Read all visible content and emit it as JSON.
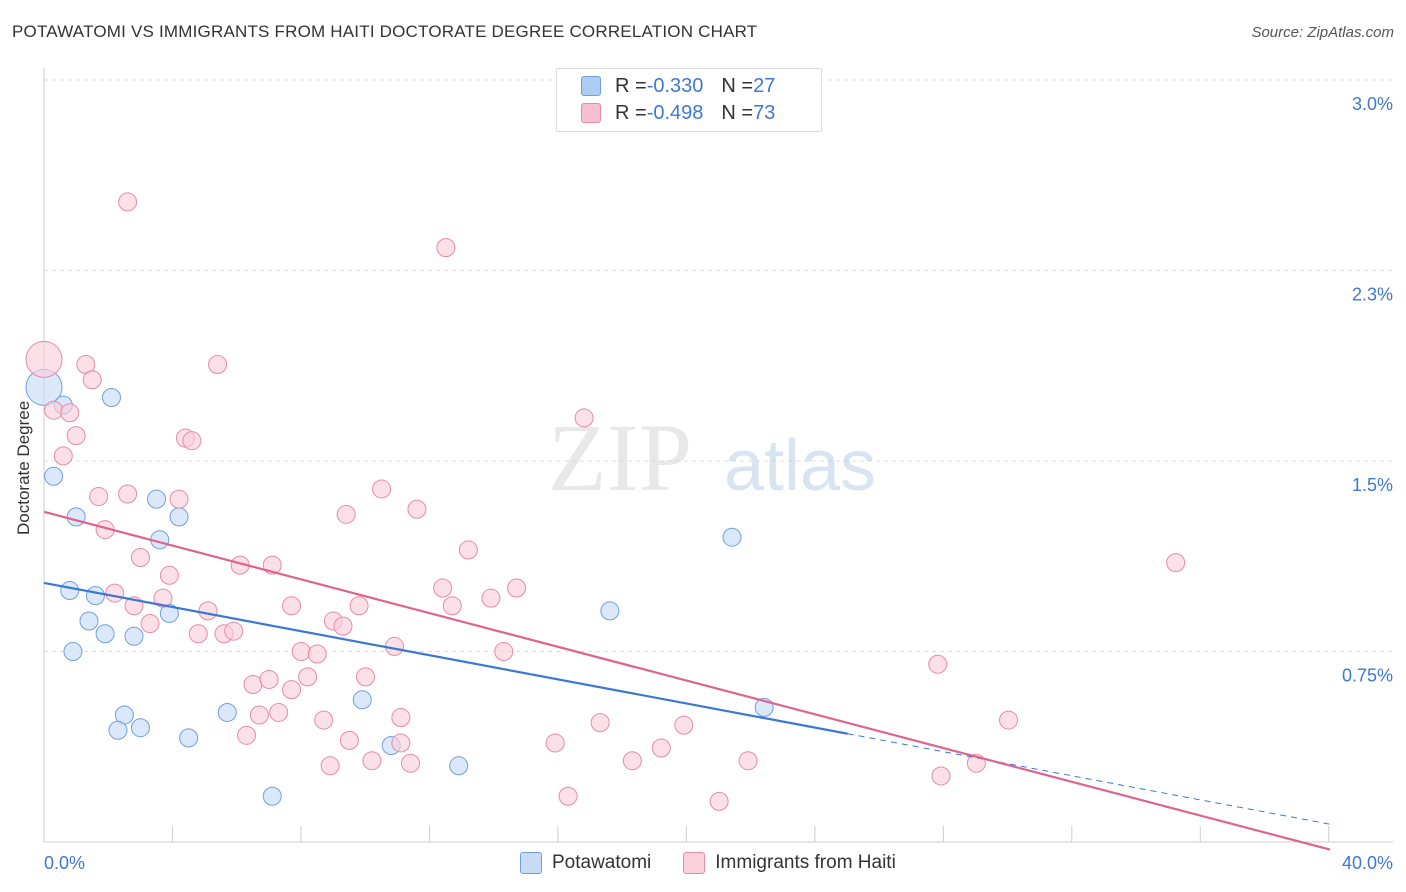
{
  "header": {
    "title": "POTAWATOMI VS IMMIGRANTS FROM HAITI DOCTORATE DEGREE CORRELATION CHART",
    "source": "Source: ZipAtlas.com"
  },
  "watermark": {
    "zip": "ZIP",
    "atlas": "atlas"
  },
  "legend": {
    "rows": [
      {
        "r_label": "R = ",
        "r_value": "-0.330",
        "n_label": "N = ",
        "n_value": "27",
        "color": "#aecbf2",
        "border": "#6f9fe0"
      },
      {
        "r_label": "R = ",
        "r_value": "-0.498",
        "n_label": "N = ",
        "n_value": "73",
        "color": "#f7c0d0",
        "border": "#e88aa6"
      }
    ]
  },
  "bottom_legend": {
    "items": [
      {
        "label": "Potawatomi",
        "color": "#c7dbf7",
        "border": "#6f9fe0"
      },
      {
        "label": "Immigrants from Haiti",
        "color": "#f9d0dc",
        "border": "#e88aa6"
      }
    ]
  },
  "chart_data": {
    "type": "scatter",
    "title": "POTAWATOMI VS IMMIGRANTS FROM HAITI DOCTORATE DEGREE CORRELATION CHART",
    "xlabel": "",
    "ylabel": "Doctorate Degree",
    "xlim": [
      0,
      40
    ],
    "ylim": [
      0,
      3.15
    ],
    "x_ticks": [
      "0.0%",
      "40.0%"
    ],
    "y_ticks": [
      {
        "value": 3.0,
        "label": "3.0%"
      },
      {
        "value": 2.25,
        "label": "2.3%"
      },
      {
        "value": 1.5,
        "label": "1.5%"
      },
      {
        "value": 0.75,
        "label": "0.75%"
      }
    ],
    "grid": "horizontal dashed",
    "series": [
      {
        "name": "Potawatomi",
        "color": "#6f9fe0",
        "fill": "#c7dbf7",
        "points": [
          [
            0.0,
            1.79,
            18
          ],
          [
            0.3,
            1.44,
            9
          ],
          [
            0.6,
            1.72,
            9
          ],
          [
            2.1,
            1.75,
            9
          ],
          [
            1.0,
            1.28,
            9
          ],
          [
            0.8,
            0.99,
            9
          ],
          [
            1.6,
            0.97,
            9
          ],
          [
            1.4,
            0.87,
            9
          ],
          [
            0.9,
            0.75,
            9
          ],
          [
            1.9,
            0.82,
            9
          ],
          [
            2.8,
            0.81,
            9
          ],
          [
            3.5,
            1.35,
            9
          ],
          [
            4.2,
            1.28,
            9
          ],
          [
            3.6,
            1.19,
            9
          ],
          [
            3.9,
            0.9,
            9
          ],
          [
            2.5,
            0.5,
            9
          ],
          [
            2.3,
            0.44,
            9
          ],
          [
            3.0,
            0.45,
            9
          ],
          [
            4.5,
            0.41,
            9
          ],
          [
            5.7,
            0.51,
            9
          ],
          [
            7.1,
            0.18,
            9
          ],
          [
            9.9,
            0.56,
            9
          ],
          [
            10.8,
            0.38,
            9
          ],
          [
            12.9,
            0.3,
            9
          ],
          [
            17.6,
            0.91,
            9
          ],
          [
            21.4,
            1.2,
            9
          ],
          [
            22.4,
            0.53,
            9
          ]
        ]
      },
      {
        "name": "Immigrants from Haiti",
        "color": "#e88aa6",
        "fill": "#f9d0dc",
        "points": [
          [
            0.0,
            1.9,
            18
          ],
          [
            0.3,
            1.7,
            9
          ],
          [
            0.8,
            1.69,
            9
          ],
          [
            1.3,
            1.88,
            9
          ],
          [
            1.5,
            1.82,
            9
          ],
          [
            1.0,
            1.6,
            9
          ],
          [
            0.6,
            1.52,
            9
          ],
          [
            1.7,
            1.36,
            9
          ],
          [
            2.6,
            2.52,
            9
          ],
          [
            2.6,
            1.37,
            9
          ],
          [
            1.9,
            1.23,
            9
          ],
          [
            2.2,
            0.98,
            9
          ],
          [
            3.0,
            1.12,
            9
          ],
          [
            4.2,
            1.35,
            9
          ],
          [
            4.4,
            1.59,
            9
          ],
          [
            4.6,
            1.58,
            9
          ],
          [
            5.4,
            1.88,
            9
          ],
          [
            3.9,
            1.05,
            9
          ],
          [
            3.7,
            0.96,
            9
          ],
          [
            2.8,
            0.93,
            9
          ],
          [
            3.3,
            0.86,
            9
          ],
          [
            4.8,
            0.82,
            9
          ],
          [
            5.6,
            0.82,
            9
          ],
          [
            5.9,
            0.83,
            9
          ],
          [
            5.1,
            0.91,
            9
          ],
          [
            6.1,
            1.09,
            9
          ],
          [
            6.5,
            0.62,
            9
          ],
          [
            6.7,
            0.5,
            9
          ],
          [
            7.0,
            0.64,
            9
          ],
          [
            7.1,
            1.09,
            9
          ],
          [
            7.7,
            0.6,
            9
          ],
          [
            7.3,
            0.51,
            9
          ],
          [
            7.7,
            0.93,
            9
          ],
          [
            8.0,
            0.75,
            9
          ],
          [
            8.2,
            0.65,
            9
          ],
          [
            8.5,
            0.74,
            9
          ],
          [
            8.7,
            0.48,
            9
          ],
          [
            8.9,
            0.3,
            9
          ],
          [
            9.0,
            0.87,
            9
          ],
          [
            9.3,
            0.85,
            9
          ],
          [
            9.4,
            1.29,
            9
          ],
          [
            9.5,
            0.4,
            9
          ],
          [
            9.8,
            0.93,
            9
          ],
          [
            10.0,
            0.65,
            9
          ],
          [
            10.5,
            1.39,
            9
          ],
          [
            10.9,
            0.77,
            9
          ],
          [
            11.1,
            0.49,
            9
          ],
          [
            11.4,
            0.31,
            9
          ],
          [
            11.6,
            1.31,
            9
          ],
          [
            12.4,
            1.0,
            9
          ],
          [
            12.7,
            0.93,
            9
          ],
          [
            13.2,
            1.15,
            9
          ],
          [
            13.9,
            0.96,
            9
          ],
          [
            14.3,
            0.75,
            9
          ],
          [
            14.7,
            1.0,
            9
          ],
          [
            15.9,
            0.39,
            9
          ],
          [
            16.3,
            0.18,
            9
          ],
          [
            16.8,
            1.67,
            9
          ],
          [
            17.3,
            0.47,
            9
          ],
          [
            19.2,
            0.37,
            9
          ],
          [
            19.9,
            0.46,
            9
          ],
          [
            21.0,
            0.16,
            9
          ],
          [
            21.9,
            0.32,
            9
          ],
          [
            27.8,
            0.7,
            9
          ],
          [
            27.9,
            0.26,
            9
          ],
          [
            29.0,
            0.31,
            9
          ],
          [
            30.0,
            0.48,
            9
          ],
          [
            35.2,
            1.1,
            9
          ],
          [
            18.3,
            0.32,
            9
          ],
          [
            12.5,
            2.34,
            9
          ],
          [
            11.1,
            0.39,
            9
          ],
          [
            10.2,
            0.32,
            9
          ],
          [
            6.3,
            0.42,
            9
          ]
        ]
      }
    ],
    "trendlines": [
      {
        "series": "Potawatomi",
        "x": [
          0,
          40
        ],
        "y": [
          1.02,
          0.07
        ],
        "solid_until": 25
      },
      {
        "series": "Immigrants from Haiti",
        "x": [
          0,
          40
        ],
        "y": [
          1.3,
          -0.03
        ]
      }
    ]
  }
}
